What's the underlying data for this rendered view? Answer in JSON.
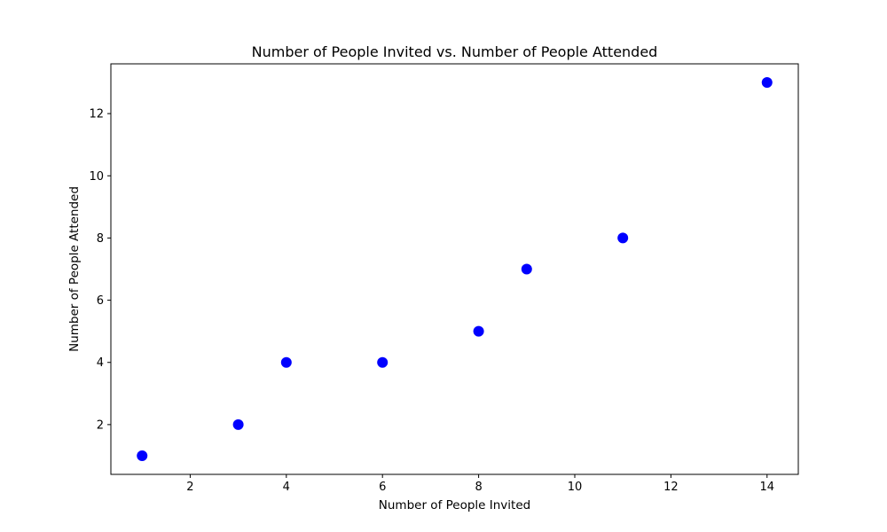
{
  "chart_data": {
    "type": "scatter",
    "title": "Number of People Invited vs. Number of People Attended",
    "xlabel": "Number of People Invited",
    "ylabel": "Number of People Attended",
    "x": [
      1,
      3,
      4,
      6,
      8,
      9,
      11,
      14
    ],
    "y": [
      1,
      2,
      4,
      4,
      5,
      7,
      8,
      13
    ],
    "xlim": [
      0.35,
      14.65
    ],
    "ylim": [
      0.4,
      13.6
    ],
    "xticks": [
      2,
      4,
      6,
      8,
      10,
      12,
      14
    ],
    "yticks": [
      2,
      4,
      6,
      8,
      10,
      12
    ],
    "xtick_labels": [
      "2",
      "4",
      "6",
      "8",
      "10",
      "12",
      "14"
    ],
    "ytick_labels": [
      "2",
      "4",
      "6",
      "8",
      "10",
      "12"
    ],
    "grid": false,
    "legend": "none",
    "marker_color": "#0000ff"
  }
}
